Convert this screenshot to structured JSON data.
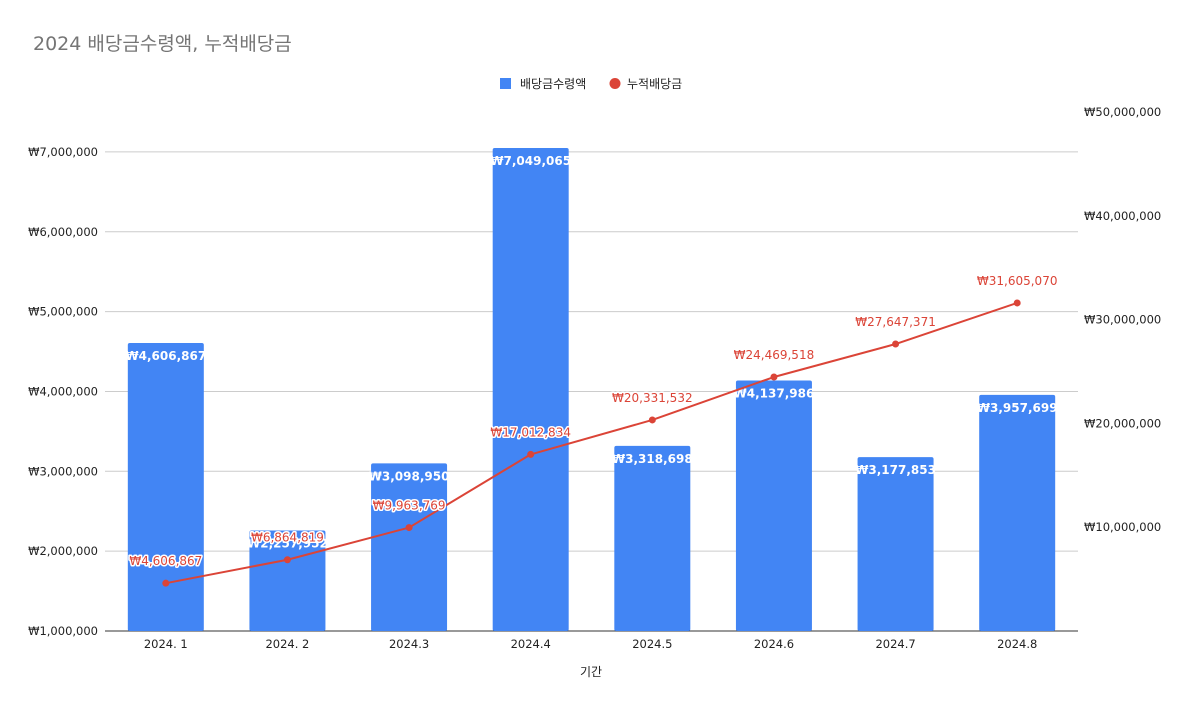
{
  "chart_data": {
    "type": "bar+line",
    "title": "2024 배당금수령액, 누적배당금",
    "xlabel": "기간",
    "categories": [
      "2024. 1",
      "2024. 2",
      "2024.3",
      "2024.4",
      "2024.5",
      "2024.6",
      "2024.7",
      "2024.8"
    ],
    "left_axis": {
      "ylim": [
        1000000,
        7500000
      ],
      "ticks": [
        "₩1,000,000",
        "₩2,000,000",
        "₩3,000,000",
        "₩4,000,000",
        "₩5,000,000",
        "₩6,000,000",
        "₩7,000,000"
      ],
      "tick_values": [
        1000000,
        2000000,
        3000000,
        4000000,
        5000000,
        6000000,
        7000000
      ]
    },
    "right_axis": {
      "ylim": [
        0,
        50000000
      ],
      "ticks": [
        "₩10,000,000",
        "₩20,000,000",
        "₩30,000,000",
        "₩40,000,000",
        "₩50,000,000"
      ],
      "tick_values": [
        10000000,
        20000000,
        30000000,
        40000000,
        50000000
      ]
    },
    "grid": true,
    "legend_position": "top",
    "series": [
      {
        "name": "배당금수령액",
        "type": "bar",
        "axis": "left",
        "color": "#4285f4",
        "values": [
          4606867,
          2257952,
          3098950,
          7049065,
          3318698,
          4137986,
          3177853,
          3957699
        ],
        "labels": [
          "₩4,606,867",
          "₩2,257,952",
          "₩3,098,950",
          "₩7,049,065",
          "₩3,318,698",
          "₩4,137,986",
          "₩3,177,853",
          "₩3,957,699"
        ]
      },
      {
        "name": "누적배당금",
        "type": "line",
        "axis": "right",
        "color": "#db4437",
        "values": [
          4606867,
          6864819,
          9963769,
          17012834,
          20331532,
          24469518,
          27647371,
          31605070
        ],
        "labels": [
          "₩4,606,867",
          "₩6,864,819",
          "₩9,963,769",
          "₩17,012,834",
          "₩20,331,532",
          "₩24,469,518",
          "₩27,647,371",
          "₩31,605,070"
        ]
      }
    ]
  }
}
